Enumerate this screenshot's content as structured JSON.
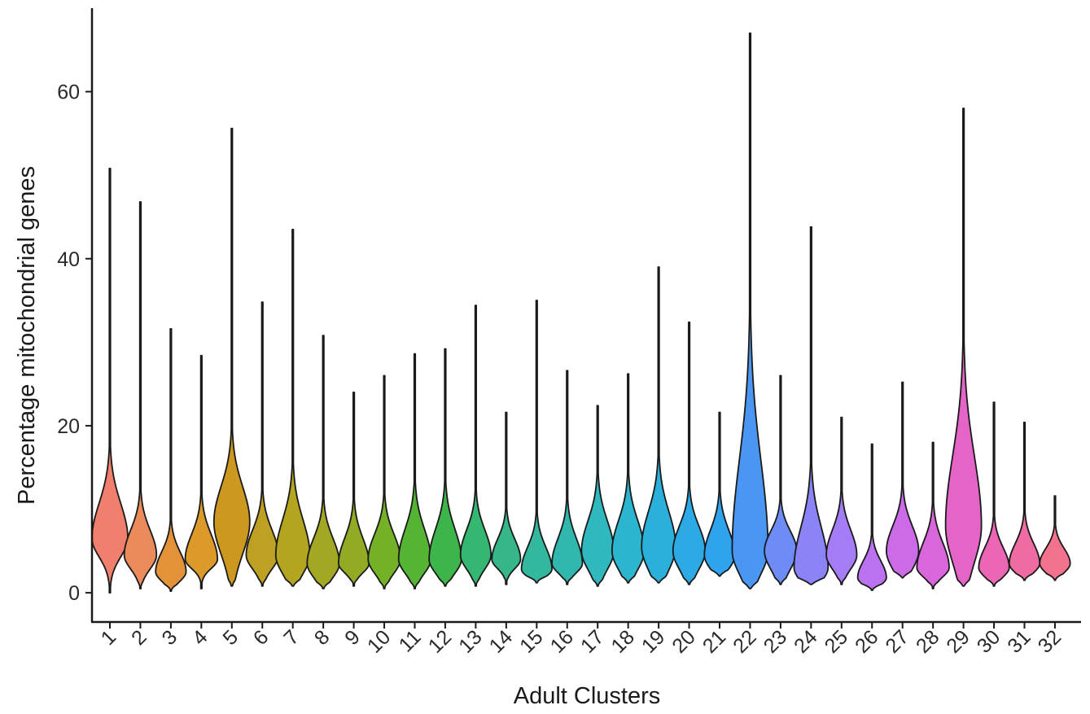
{
  "chart_data": {
    "type": "violin",
    "xlabel": "Adult Clusters",
    "ylabel": "Percentage mitochondrial genes",
    "ylim": [
      -3.5,
      70
    ],
    "y_ticks": [
      0,
      20,
      40,
      60
    ],
    "grid": false,
    "legend": "none",
    "categories": [
      "1",
      "2",
      "3",
      "4",
      "5",
      "6",
      "7",
      "8",
      "9",
      "10",
      "11",
      "12",
      "13",
      "14",
      "15",
      "16",
      "17",
      "18",
      "19",
      "20",
      "21",
      "22",
      "23",
      "24",
      "25",
      "26",
      "27",
      "28",
      "29",
      "30",
      "31",
      "32"
    ],
    "series": [
      {
        "category": "1",
        "color": "#F07F6E",
        "min": 0,
        "max": 50.8,
        "mode": 6.5,
        "q_low": 4.5,
        "q_high": 10,
        "spread": 1.0,
        "peak_width": 1.0
      },
      {
        "category": "2",
        "color": "#EB8A5A",
        "min": 0.5,
        "max": 46.8,
        "mode": 4.5,
        "q_low": 3,
        "q_high": 7,
        "spread": 0.9,
        "peak_width": 0.9
      },
      {
        "category": "3",
        "color": "#E39238",
        "min": 0.2,
        "max": 31.6,
        "mode": 2.5,
        "q_low": 1.5,
        "q_high": 4.5,
        "spread": 0.85,
        "peak_width": 0.85
      },
      {
        "category": "4",
        "color": "#DC9A2A",
        "min": 0.5,
        "max": 28.4,
        "mode": 4,
        "q_low": 3,
        "q_high": 6.5,
        "spread": 0.85,
        "peak_width": 0.9
      },
      {
        "category": "5",
        "color": "#CC981F",
        "min": 0.8,
        "max": 55.6,
        "mode": 8.5,
        "q_low": 5,
        "q_high": 12,
        "spread": 1.1,
        "peak_width": 1.0
      },
      {
        "category": "6",
        "color": "#BEA023",
        "min": 0.8,
        "max": 34.8,
        "mode": 4.5,
        "q_low": 3,
        "q_high": 7,
        "spread": 0.85,
        "peak_width": 0.9
      },
      {
        "category": "7",
        "color": "#B3A51F",
        "min": 0.8,
        "max": 43.5,
        "mode": 4.5,
        "q_low": 2.5,
        "q_high": 8,
        "spread": 0.95,
        "peak_width": 0.95
      },
      {
        "category": "8",
        "color": "#A3A824",
        "min": 0.5,
        "max": 30.8,
        "mode": 3.5,
        "q_low": 2,
        "q_high": 6,
        "spread": 0.9,
        "peak_width": 0.9
      },
      {
        "category": "9",
        "color": "#91AC24",
        "min": 0.8,
        "max": 24,
        "mode": 3.5,
        "q_low": 2.5,
        "q_high": 6,
        "spread": 0.85,
        "peak_width": 0.85
      },
      {
        "category": "10",
        "color": "#75B126",
        "min": 0.5,
        "max": 26,
        "mode": 4,
        "q_low": 2.5,
        "q_high": 6.5,
        "spread": 0.85,
        "peak_width": 0.9
      },
      {
        "category": "11",
        "color": "#55B433",
        "min": 0.5,
        "max": 28.6,
        "mode": 4,
        "q_low": 2.5,
        "q_high": 7,
        "spread": 0.85,
        "peak_width": 0.9
      },
      {
        "category": "12",
        "color": "#3DB54A",
        "min": 0.8,
        "max": 29.2,
        "mode": 4,
        "q_low": 2.5,
        "q_high": 7,
        "spread": 0.85,
        "peak_width": 0.9
      },
      {
        "category": "13",
        "color": "#35B772",
        "min": 0.8,
        "max": 34.4,
        "mode": 4.5,
        "q_low": 3,
        "q_high": 7,
        "spread": 0.85,
        "peak_width": 0.85
      },
      {
        "category": "14",
        "color": "#35B78A",
        "min": 1,
        "max": 21.6,
        "mode": 4,
        "q_low": 3,
        "q_high": 6,
        "spread": 0.8,
        "peak_width": 0.8
      },
      {
        "category": "15",
        "color": "#33B89E",
        "min": 1.2,
        "max": 35,
        "mode": 2.8,
        "q_low": 2,
        "q_high": 5,
        "spread": 0.85,
        "peak_width": 0.85
      },
      {
        "category": "16",
        "color": "#30B8AE",
        "min": 1,
        "max": 26.6,
        "mode": 3.5,
        "q_low": 2.5,
        "q_high": 6,
        "spread": 0.8,
        "peak_width": 0.85
      },
      {
        "category": "17",
        "color": "#2FB8BE",
        "min": 0.8,
        "max": 22.4,
        "mode": 5,
        "q_low": 3,
        "q_high": 8,
        "spread": 0.9,
        "peak_width": 0.9
      },
      {
        "category": "18",
        "color": "#2BB5CE",
        "min": 1.2,
        "max": 26.2,
        "mode": 5,
        "q_low": 3,
        "q_high": 8,
        "spread": 0.9,
        "peak_width": 0.9
      },
      {
        "category": "19",
        "color": "#2BB0DB",
        "min": 1.2,
        "max": 39,
        "mode": 5.5,
        "q_low": 3,
        "q_high": 9,
        "spread": 0.9,
        "peak_width": 0.95
      },
      {
        "category": "20",
        "color": "#2BAAE5",
        "min": 1,
        "max": 32.4,
        "mode": 5,
        "q_low": 3,
        "q_high": 7.5,
        "spread": 0.85,
        "peak_width": 0.9
      },
      {
        "category": "21",
        "color": "#2FA3EE",
        "min": 2,
        "max": 21.6,
        "mode": 4.5,
        "q_low": 3,
        "q_high": 7,
        "spread": 0.8,
        "peak_width": 0.85
      },
      {
        "category": "22",
        "color": "#4A96F2",
        "min": 0.5,
        "max": 67,
        "mode": 5,
        "q_low": 2.5,
        "q_high": 14,
        "spread": 1.0,
        "peak_width": 1.0
      },
      {
        "category": "23",
        "color": "#6D8CF5",
        "min": 1,
        "max": 26,
        "mode": 5,
        "q_low": 3,
        "q_high": 7,
        "spread": 0.85,
        "peak_width": 0.9
      },
      {
        "category": "24",
        "color": "#8B84F6",
        "min": 1,
        "max": 43.8,
        "mode": 3,
        "q_low": 1.5,
        "q_high": 7,
        "spread": 0.95,
        "peak_width": 0.95
      },
      {
        "category": "25",
        "color": "#A47CF5",
        "min": 1,
        "max": 21,
        "mode": 4.5,
        "q_low": 3,
        "q_high": 7,
        "spread": 0.8,
        "peak_width": 0.85
      },
      {
        "category": "26",
        "color": "#BB72F1",
        "min": 0.3,
        "max": 17.8,
        "mode": 1.8,
        "q_low": 1,
        "q_high": 3.5,
        "spread": 0.8,
        "peak_width": 0.8
      },
      {
        "category": "27",
        "color": "#CC6BE8",
        "min": 1.8,
        "max": 25.2,
        "mode": 5,
        "q_low": 3,
        "q_high": 7.5,
        "spread": 0.85,
        "peak_width": 0.9
      },
      {
        "category": "28",
        "color": "#DA66DB",
        "min": 0.5,
        "max": 18,
        "mode": 3,
        "q_low": 2,
        "q_high": 5.5,
        "spread": 0.85,
        "peak_width": 0.9
      },
      {
        "category": "29",
        "color": "#E564C8",
        "min": 0.8,
        "max": 58,
        "mode": 8,
        "q_low": 4,
        "q_high": 15,
        "spread": 1.1,
        "peak_width": 1.0
      },
      {
        "category": "30",
        "color": "#EB66B5",
        "min": 0.8,
        "max": 22.8,
        "mode": 3,
        "q_low": 2,
        "q_high": 5,
        "spread": 0.85,
        "peak_width": 0.85
      },
      {
        "category": "31",
        "color": "#EF6CA2",
        "min": 1.5,
        "max": 20.4,
        "mode": 3.5,
        "q_low": 2.5,
        "q_high": 5.5,
        "spread": 0.8,
        "peak_width": 0.85
      },
      {
        "category": "32",
        "color": "#F1728D",
        "min": 1.5,
        "max": 11.6,
        "mode": 3.5,
        "q_low": 2.5,
        "q_high": 5,
        "spread": 0.8,
        "peak_width": 0.85
      }
    ]
  }
}
